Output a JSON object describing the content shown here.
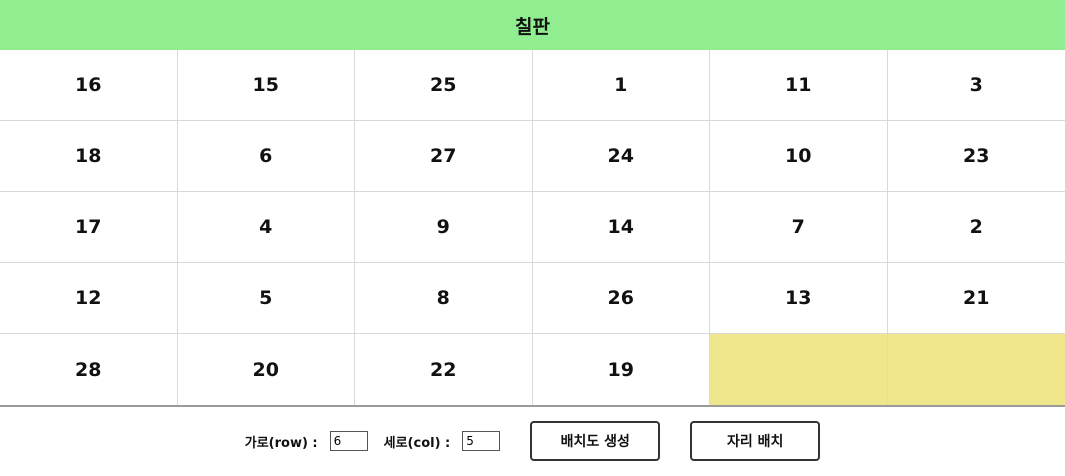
{
  "header": {
    "title": "칠판"
  },
  "seats": {
    "rows": [
      [
        "16",
        "15",
        "25",
        "1",
        "11",
        "3"
      ],
      [
        "18",
        "6",
        "27",
        "24",
        "10",
        "23"
      ],
      [
        "17",
        "4",
        "9",
        "14",
        "7",
        "2"
      ],
      [
        "12",
        "5",
        "8",
        "26",
        "13",
        "21"
      ],
      [
        "28",
        "20",
        "22",
        "19",
        "",
        ""
      ]
    ]
  },
  "controls": {
    "row_label": "가로(row) :",
    "row_value": "6",
    "col_label": "세로(col) :",
    "col_value": "5",
    "generate_button": "배치도 생성",
    "arrange_button": "자리 배치"
  },
  "colors": {
    "header_bg": "#90ee90",
    "empty_seat": "#f0e68c"
  }
}
